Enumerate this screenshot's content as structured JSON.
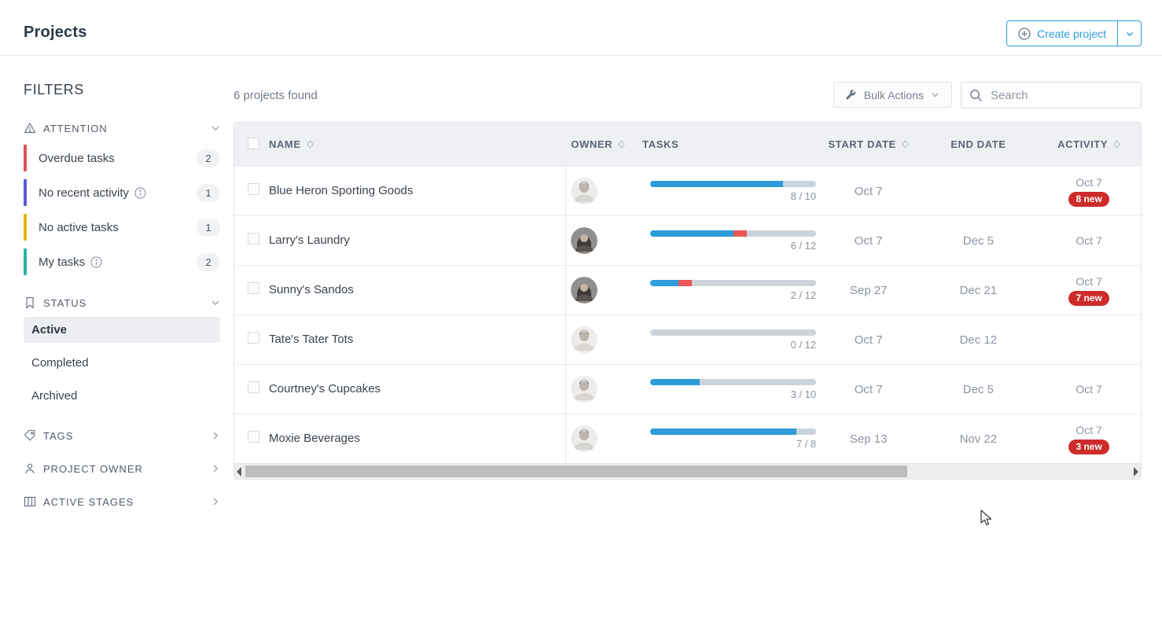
{
  "page": {
    "title": "Projects"
  },
  "header": {
    "create_button_label": "Create project"
  },
  "sidebar": {
    "title": "FILTERS",
    "attention": {
      "label": "ATTENTION",
      "items": [
        {
          "label": "Overdue tasks",
          "count": "2",
          "color": "#E05252"
        },
        {
          "label": "No recent activity",
          "count": "1",
          "color": "#5B5BD6"
        },
        {
          "label": "No active tasks",
          "count": "1",
          "color": "#E3B50C"
        },
        {
          "label": "My tasks",
          "count": "2",
          "color": "#2BB5A0"
        }
      ]
    },
    "status": {
      "label": "STATUS",
      "items": [
        {
          "label": "Active"
        },
        {
          "label": "Completed"
        },
        {
          "label": "Archived"
        }
      ],
      "selected": "Active"
    },
    "collapsed_sections": [
      {
        "label": "TAGS"
      },
      {
        "label": "PROJECT OWNER"
      },
      {
        "label": "ACTIVE STAGES"
      }
    ]
  },
  "toolbar": {
    "results_count": "6 projects found",
    "bulk_actions_label": "Bulk Actions",
    "search_placeholder": "Search"
  },
  "table": {
    "columns": {
      "name": "NAME",
      "owner": "OWNER",
      "tasks": "TASKS",
      "start": "START DATE",
      "end": "END DATE",
      "activity": "ACTIVITY"
    },
    "rows": [
      {
        "name": "Blue Heron Sporting Goods",
        "avatar": "male",
        "tasks": {
          "label": "8 / 10",
          "completed_pct": 80,
          "overdue_pct": 0
        },
        "start_date": "Oct 7",
        "end_date": "",
        "activity_date": "Oct 7",
        "activity_badge": "8 new"
      },
      {
        "name": "Larry's Laundry",
        "avatar": "female",
        "tasks": {
          "label": "6 / 12",
          "completed_pct": 50,
          "overdue_pct": 8
        },
        "start_date": "Oct 7",
        "end_date": "Dec 5",
        "activity_date": "Oct 7",
        "activity_badge": ""
      },
      {
        "name": "Sunny's Sandos",
        "avatar": "female",
        "tasks": {
          "label": "2 / 12",
          "completed_pct": 17,
          "overdue_pct": 8
        },
        "start_date": "Sep 27",
        "end_date": "Dec 21",
        "activity_date": "Oct 7",
        "activity_badge": "7 new"
      },
      {
        "name": "Tate's Tater Tots",
        "avatar": "male",
        "tasks": {
          "label": "0 / 12",
          "completed_pct": 0,
          "overdue_pct": 0
        },
        "start_date": "Oct 7",
        "end_date": "Dec 12",
        "activity_date": "",
        "activity_badge": ""
      },
      {
        "name": "Courtney's Cupcakes",
        "avatar": "male",
        "tasks": {
          "label": "3 / 10",
          "completed_pct": 30,
          "overdue_pct": 0
        },
        "start_date": "Oct 7",
        "end_date": "Dec 5",
        "activity_date": "Oct 7",
        "activity_badge": ""
      },
      {
        "name": "Moxie Beverages",
        "avatar": "male",
        "tasks": {
          "label": "7 / 8",
          "completed_pct": 88,
          "overdue_pct": 0
        },
        "start_date": "Sep 13",
        "end_date": "Nov 22",
        "activity_date": "Oct 7",
        "activity_badge": "3 new"
      }
    ]
  },
  "colors": {
    "accent_blue": "#2D9CDB",
    "progress_blue": "#2D9CDB",
    "progress_overdue_red": "#EB5757",
    "badge_red": "#CE2B2B"
  }
}
